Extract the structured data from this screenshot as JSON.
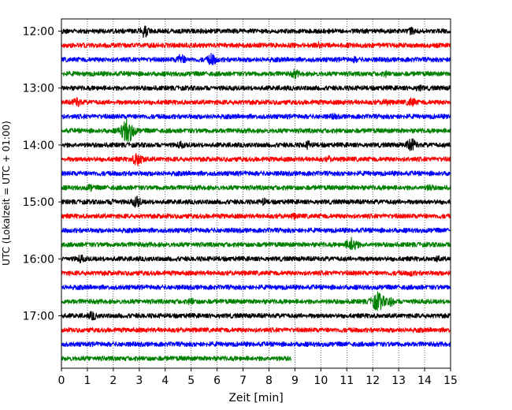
{
  "chart_data": {
    "type": "line",
    "title": "",
    "xlabel": "Zeit  [min]",
    "ylabel": "UTC (Lokalzeit = UTC + 01:00)",
    "xlim": [
      0,
      15
    ],
    "xticks": [
      "0",
      "1",
      "2",
      "3",
      "4",
      "5",
      "6",
      "7",
      "8",
      "9",
      "10",
      "11",
      "12",
      "13",
      "14",
      "15"
    ],
    "yticks": [
      {
        "label": "12:00",
        "row": 0
      },
      {
        "label": "13:00",
        "row": 4
      },
      {
        "label": "14:00",
        "row": 8
      },
      {
        "label": "15:00",
        "row": 12
      },
      {
        "label": "16:00",
        "row": 16
      },
      {
        "label": "17:00",
        "row": 20
      }
    ],
    "minutes_per_row": 15,
    "grid": "vertical-dotted",
    "row_colors": [
      "#000000",
      "#ff0000",
      "#0000ff",
      "#008000"
    ],
    "traces": [
      {
        "start": "12:00",
        "end_min": 15,
        "events": [
          {
            "t": 3.2,
            "amp": 0.9
          },
          {
            "t": 13.5,
            "amp": 0.5
          }
        ]
      },
      {
        "start": "12:15",
        "end_min": 15,
        "events": [
          {
            "t": 9.9,
            "amp": 0.3
          }
        ]
      },
      {
        "start": "12:30",
        "end_min": 15,
        "events": [
          {
            "t": 4.6,
            "amp": 0.8
          },
          {
            "t": 5.8,
            "amp": 0.9
          },
          {
            "t": 11.3,
            "amp": 0.3
          }
        ]
      },
      {
        "start": "12:45",
        "end_min": 15,
        "events": [
          {
            "t": 9.0,
            "amp": 0.6
          },
          {
            "t": 12.5,
            "amp": 0.3
          }
        ]
      },
      {
        "start": "13:00",
        "end_min": 15,
        "events": [
          {
            "t": 13.8,
            "amp": 0.4
          }
        ]
      },
      {
        "start": "13:15",
        "end_min": 15,
        "events": [
          {
            "t": 0.6,
            "amp": 0.7
          },
          {
            "t": 12.5,
            "amp": 0.4
          },
          {
            "t": 13.5,
            "amp": 0.7
          }
        ]
      },
      {
        "start": "13:30",
        "end_min": 15,
        "events": [
          {
            "t": 10.5,
            "amp": 0.3
          }
        ]
      },
      {
        "start": "13:45",
        "end_min": 15,
        "events": [
          {
            "t": 2.55,
            "amp": 2.2
          }
        ]
      },
      {
        "start": "14:00",
        "end_min": 15,
        "events": [
          {
            "t": 4.6,
            "amp": 0.4
          },
          {
            "t": 9.5,
            "amp": 0.5
          },
          {
            "t": 13.5,
            "amp": 1.0
          }
        ]
      },
      {
        "start": "14:15",
        "end_min": 15,
        "events": [
          {
            "t": 2.95,
            "amp": 1.1
          },
          {
            "t": 10.3,
            "amp": 0.3
          }
        ]
      },
      {
        "start": "14:30",
        "end_min": 15,
        "events": []
      },
      {
        "start": "14:45",
        "end_min": 15,
        "events": [
          {
            "t": 1.1,
            "amp": 0.4
          },
          {
            "t": 14.2,
            "amp": 0.4
          }
        ]
      },
      {
        "start": "15:00",
        "end_min": 15,
        "events": [
          {
            "t": 2.0,
            "amp": 0.4
          },
          {
            "t": 2.9,
            "amp": 0.8
          },
          {
            "t": 7.8,
            "amp": 0.4
          }
        ]
      },
      {
        "start": "15:15",
        "end_min": 15,
        "events": [
          {
            "t": 9.0,
            "amp": 0.3
          }
        ]
      },
      {
        "start": "15:30",
        "end_min": 15,
        "events": []
      },
      {
        "start": "15:45",
        "end_min": 15,
        "events": [
          {
            "t": 11.2,
            "amp": 1.2
          }
        ]
      },
      {
        "start": "16:00",
        "end_min": 15,
        "events": [
          {
            "t": 0.75,
            "amp": 0.5
          },
          {
            "t": 14.5,
            "amp": 0.3
          }
        ]
      },
      {
        "start": "16:15",
        "end_min": 15,
        "events": [
          {
            "t": 13.5,
            "amp": 0.3
          }
        ]
      },
      {
        "start": "16:30",
        "end_min": 15,
        "events": []
      },
      {
        "start": "16:45",
        "end_min": 15,
        "events": [
          {
            "t": 5.0,
            "amp": 0.4
          },
          {
            "t": 12.2,
            "amp": 1.6
          },
          {
            "t": 12.7,
            "amp": 0.6
          }
        ]
      },
      {
        "start": "17:00",
        "end_min": 15,
        "events": [
          {
            "t": 1.2,
            "amp": 0.6
          }
        ]
      },
      {
        "start": "17:15",
        "end_min": 15,
        "events": []
      },
      {
        "start": "17:30",
        "end_min": 15,
        "events": []
      },
      {
        "start": "17:45",
        "end_min": 8.85,
        "events": []
      }
    ]
  }
}
